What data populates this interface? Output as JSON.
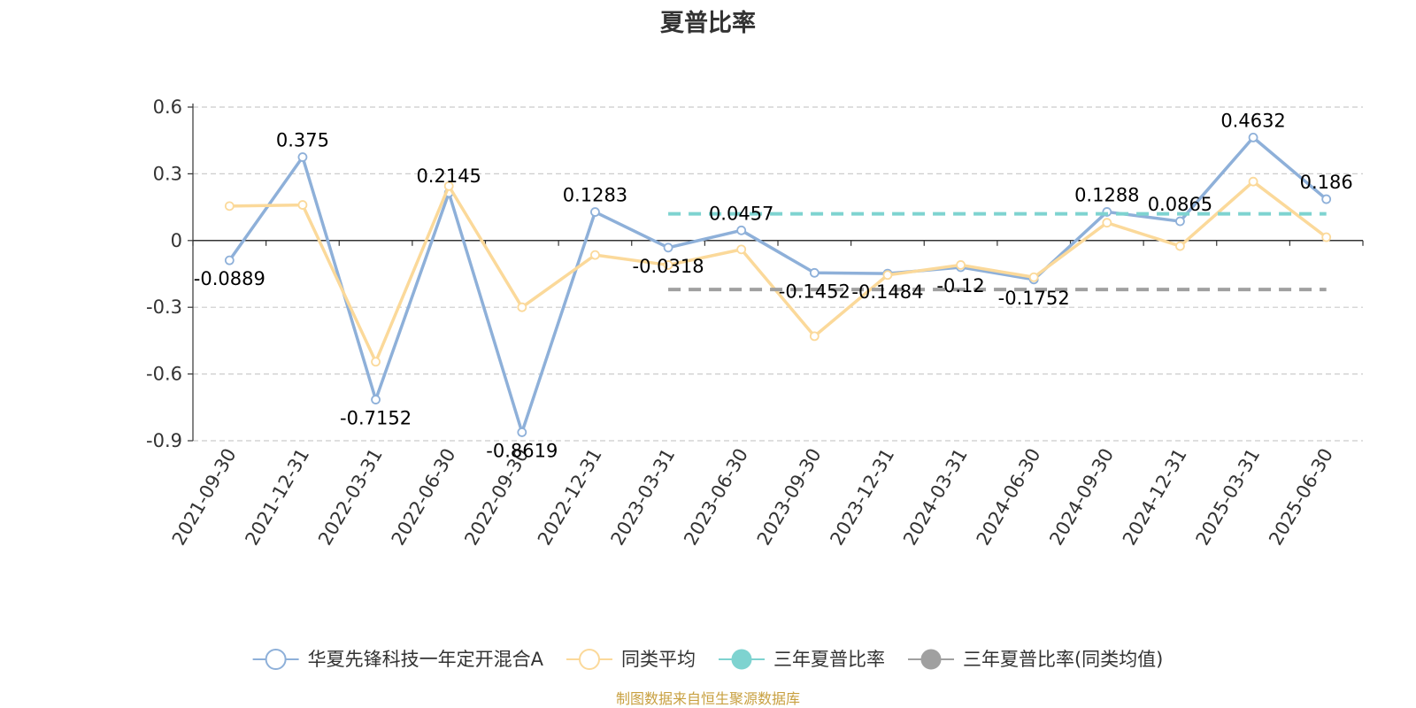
{
  "chart_data": {
    "type": "line",
    "title": "夏普比率",
    "categories": [
      "2021-09-30",
      "2021-12-31",
      "2022-03-31",
      "2022-06-30",
      "2022-09-30",
      "2022-12-31",
      "2023-03-31",
      "2023-06-30",
      "2023-09-30",
      "2023-12-31",
      "2024-03-31",
      "2024-06-30",
      "2024-09-30",
      "2024-12-31",
      "2025-03-31",
      "2025-06-30"
    ],
    "y_ticks": [
      "0.6",
      "0.3",
      "0",
      "-0.3",
      "-0.6",
      "-0.9"
    ],
    "ylim": [
      -0.9,
      0.6
    ],
    "grid": true,
    "legend_position": "bottom",
    "series": [
      {
        "name": "华夏先锋科技一年定开混合A",
        "color": "#8eb0d9",
        "values": [
          -0.0889,
          0.375,
          -0.7152,
          0.2145,
          -0.8619,
          0.1283,
          -0.0318,
          0.0457,
          -0.1452,
          -0.1484,
          -0.12,
          -0.1752,
          0.1288,
          0.0865,
          0.4632,
          0.186
        ],
        "labels": [
          "-0.0889",
          "0.375",
          "-0.7152",
          "0.2145",
          "-0.8619",
          "0.1283",
          "-0.0318",
          "0.0457",
          "-0.1452",
          "-0.1484",
          "-0.12",
          "-0.1752",
          "0.1288",
          "0.0865",
          "0.4632",
          "0.186"
        ]
      },
      {
        "name": "同类平均",
        "color": "#fbd99a",
        "values": [
          0.155,
          0.16,
          -0.545,
          0.245,
          -0.3,
          -0.065,
          -0.11,
          -0.04,
          -0.43,
          -0.155,
          -0.11,
          -0.165,
          0.08,
          -0.025,
          0.265,
          0.015
        ]
      },
      {
        "name": "三年夏普比率",
        "color": "#7ed3d0",
        "dashed": true,
        "start_index": 6,
        "end_index": 15,
        "value": 0.12
      },
      {
        "name": "三年夏普比率(同类均值)",
        "color": "#a0a0a0",
        "dashed": true,
        "start_index": 6,
        "end_index": 15,
        "value": -0.22
      }
    ],
    "source_note": "制图数据来自恒生聚源数据库"
  }
}
